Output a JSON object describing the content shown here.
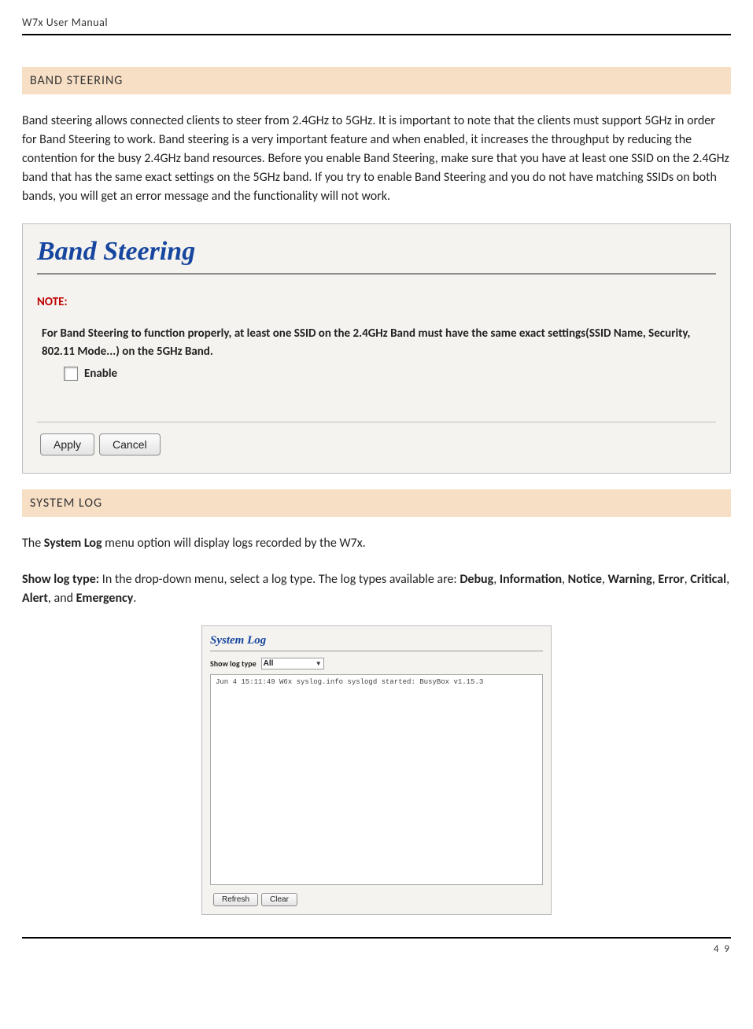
{
  "header": {
    "title": "W7x  User Manual"
  },
  "footer": {
    "page": "4 9"
  },
  "sections": {
    "band_steering": {
      "heading": "BAND STEERING",
      "body": "Band steering allows connected clients to steer from 2.4GHz to 5GHz. It is important to note that the clients must support 5GHz in order for Band Steering to work. Band steering is a very important feature and when enabled, it increases the throughput by reducing the contention for the busy 2.4GHz band resources. Before you enable Band Steering, make sure that you have at least one SSID on the 2.4GHz band that has the same exact settings on the 5GHz band. If you try to enable Band Steering and you do not have matching SSIDs on both bands, you will get an error message and the functionality will not work."
    },
    "system_log": {
      "heading": "SYSTEM LOG",
      "body_prefix": "The ",
      "body_bold1": "System Log",
      "body_mid": " menu option will display logs recorded by the W7x.",
      "line2_prefix": "Show log type:",
      "line2_mid": " In the drop-down menu, select a log type. The log types available are: ",
      "opts": [
        "Debug",
        "Information",
        "Notice",
        "Warning",
        "Error",
        "Critical",
        "Alert",
        "Emergency"
      ]
    }
  },
  "panel_bs": {
    "title": "Band Steering",
    "note_label": "NOTE:",
    "note_text": "For Band Steering to function properly, at least one SSID on the 2.4GHz Band must have the same exact settings(SSID Name, Security, 802.11 Mode...) on the 5GHz Band.",
    "enable_label": "Enable",
    "apply": "Apply",
    "cancel": "Cancel",
    "colors": {
      "title": "#16469f",
      "note": "#c00000",
      "panel_bg": "#f5f3ef",
      "border": "#bdbdbd"
    }
  },
  "panel_sl": {
    "title": "System Log",
    "show_label": "Show log type",
    "select_value": "All",
    "log_line": "Jun  4 15:11:49 W6x syslog.info syslogd started: BusyBox v1.15.3",
    "refresh": "Refresh",
    "clear": "Clear"
  }
}
